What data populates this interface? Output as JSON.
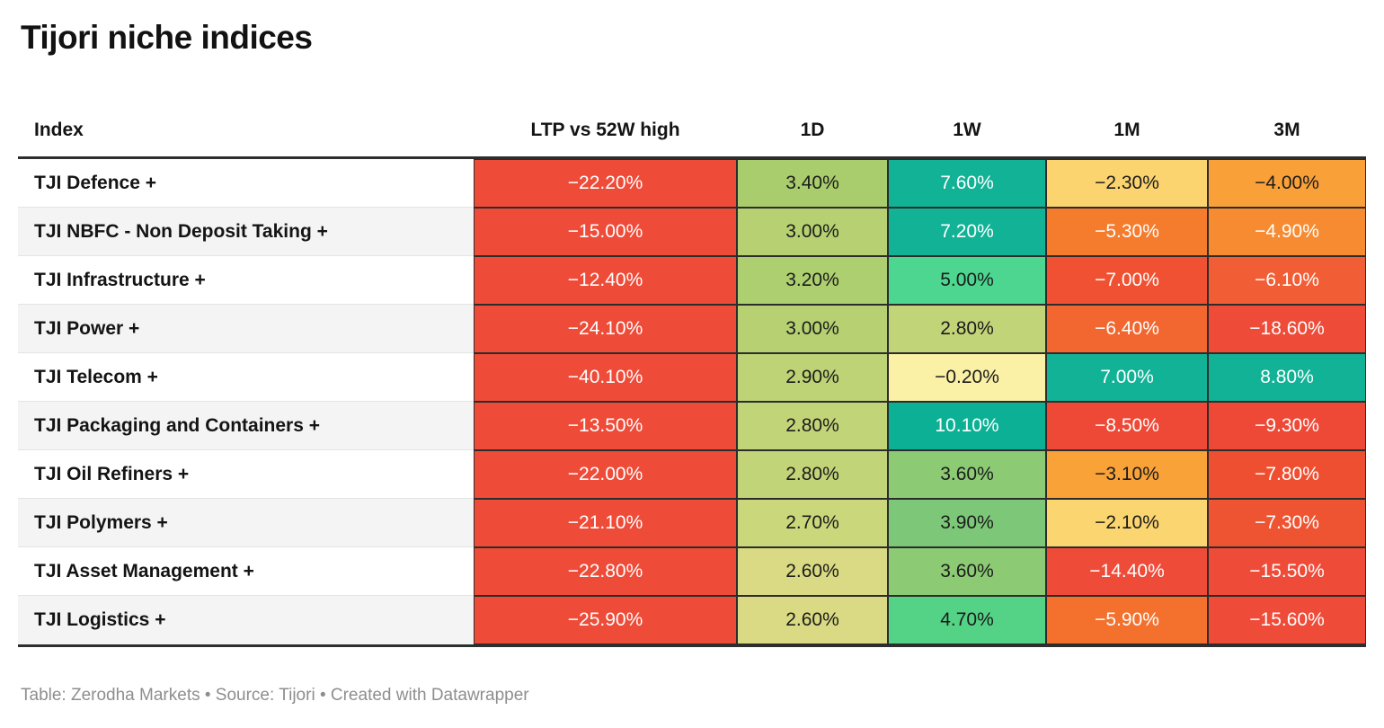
{
  "title": "Tijori niche indices",
  "footer": {
    "text": "Table: Zerodha Markets • Source: Tijori • Created with Datawrapper"
  },
  "colors": {
    "strong_negative": "#ee4b38",
    "strong_positive": "#12b296",
    "neutral": "#faf0a6",
    "header_border": "#2e2e2e",
    "alt_row_bg": "#f4f4f4",
    "footer_text": "#8e8e8e"
  },
  "chart_data": {
    "type": "table",
    "title": "Tijori niche indices",
    "columns": [
      "Index",
      "LTP vs 52W high",
      "1D",
      "1W",
      "1M",
      "3M"
    ],
    "legend_position": "none",
    "grid": "heatmap-cells",
    "rows": [
      {
        "index": "TJI Defence +",
        "values": [
          -22.2,
          3.4,
          7.6,
          -2.3,
          -4.0
        ],
        "cells": [
          {
            "text": "−22.20%",
            "bg": "#ee4b38",
            "fg": "#ffffff"
          },
          {
            "text": "3.40%",
            "bg": "#a9cd6c",
            "fg": "#1b1b1b"
          },
          {
            "text": "7.60%",
            "bg": "#12b296",
            "fg": "#ffffff"
          },
          {
            "text": "−2.30%",
            "bg": "#fbd36f",
            "fg": "#1b1b1b"
          },
          {
            "text": "−4.00%",
            "bg": "#f9a138",
            "fg": "#1b1b1b"
          }
        ]
      },
      {
        "index": "TJI NBFC - Non Deposit Taking +",
        "values": [
          -15.0,
          3.0,
          7.2,
          -5.3,
          -4.9
        ],
        "cells": [
          {
            "text": "−15.00%",
            "bg": "#ee4b38",
            "fg": "#ffffff"
          },
          {
            "text": "3.00%",
            "bg": "#b7d172",
            "fg": "#1b1b1b"
          },
          {
            "text": "7.20%",
            "bg": "#12b296",
            "fg": "#ffffff"
          },
          {
            "text": "−5.30%",
            "bg": "#f57b2d",
            "fg": "#ffffff"
          },
          {
            "text": "−4.90%",
            "bg": "#f68b31",
            "fg": "#ffffff"
          }
        ]
      },
      {
        "index": "TJI Infrastructure +",
        "values": [
          -12.4,
          3.2,
          5.0,
          -7.0,
          -6.1
        ],
        "cells": [
          {
            "text": "−12.40%",
            "bg": "#ee4b38",
            "fg": "#ffffff"
          },
          {
            "text": "3.20%",
            "bg": "#aecf6f",
            "fg": "#1b1b1b"
          },
          {
            "text": "5.00%",
            "bg": "#4cd690",
            "fg": "#1b1b1b"
          },
          {
            "text": "−7.00%",
            "bg": "#ef5132",
            "fg": "#ffffff"
          },
          {
            "text": "−6.10%",
            "bg": "#f15e35",
            "fg": "#ffffff"
          }
        ]
      },
      {
        "index": "TJI Power +",
        "values": [
          -24.1,
          3.0,
          2.8,
          -6.4,
          -18.6
        ],
        "cells": [
          {
            "text": "−24.10%",
            "bg": "#ee4b38",
            "fg": "#ffffff"
          },
          {
            "text": "3.00%",
            "bg": "#b7d172",
            "fg": "#1b1b1b"
          },
          {
            "text": "2.80%",
            "bg": "#c2d478",
            "fg": "#1b1b1b"
          },
          {
            "text": "−6.40%",
            "bg": "#f2672f",
            "fg": "#ffffff"
          },
          {
            "text": "−18.60%",
            "bg": "#ee4b38",
            "fg": "#ffffff"
          }
        ]
      },
      {
        "index": "TJI Telecom +",
        "values": [
          -40.1,
          2.9,
          -0.2,
          7.0,
          8.8
        ],
        "cells": [
          {
            "text": "−40.10%",
            "bg": "#ee4b38",
            "fg": "#ffffff"
          },
          {
            "text": "2.90%",
            "bg": "#bdd375",
            "fg": "#1b1b1b"
          },
          {
            "text": "−0.20%",
            "bg": "#faf0a6",
            "fg": "#1b1b1b"
          },
          {
            "text": "7.00%",
            "bg": "#12b296",
            "fg": "#ffffff"
          },
          {
            "text": "8.80%",
            "bg": "#12b296",
            "fg": "#ffffff"
          }
        ]
      },
      {
        "index": "TJI Packaging and Containers +",
        "values": [
          -13.5,
          2.8,
          10.1,
          -8.5,
          -9.3
        ],
        "cells": [
          {
            "text": "−13.50%",
            "bg": "#ee4b38",
            "fg": "#ffffff"
          },
          {
            "text": "2.80%",
            "bg": "#c2d478",
            "fg": "#1b1b1b"
          },
          {
            "text": "10.10%",
            "bg": "#0cb195",
            "fg": "#ffffff"
          },
          {
            "text": "−8.50%",
            "bg": "#ee4936",
            "fg": "#ffffff"
          },
          {
            "text": "−9.30%",
            "bg": "#ee4936",
            "fg": "#ffffff"
          }
        ]
      },
      {
        "index": "TJI Oil Refiners +",
        "values": [
          -22.0,
          2.8,
          3.6,
          -3.1,
          -7.8
        ],
        "cells": [
          {
            "text": "−22.00%",
            "bg": "#ee4b38",
            "fg": "#ffffff"
          },
          {
            "text": "2.80%",
            "bg": "#c2d478",
            "fg": "#1b1b1b"
          },
          {
            "text": "3.60%",
            "bg": "#8cca74",
            "fg": "#1b1b1b"
          },
          {
            "text": "−3.10%",
            "bg": "#f9a238",
            "fg": "#1b1b1b"
          },
          {
            "text": "−7.80%",
            "bg": "#ef4f31",
            "fg": "#ffffff"
          }
        ]
      },
      {
        "index": "TJI Polymers +",
        "values": [
          -21.1,
          2.7,
          3.9,
          -2.1,
          -7.3
        ],
        "cells": [
          {
            "text": "−21.10%",
            "bg": "#ee4b38",
            "fg": "#ffffff"
          },
          {
            "text": "2.70%",
            "bg": "#cad77b",
            "fg": "#1b1b1b"
          },
          {
            "text": "3.90%",
            "bg": "#7dc878",
            "fg": "#1b1b1b"
          },
          {
            "text": "−2.10%",
            "bg": "#fbd56f",
            "fg": "#1b1b1b"
          },
          {
            "text": "−7.30%",
            "bg": "#ef5432",
            "fg": "#ffffff"
          }
        ]
      },
      {
        "index": "TJI Asset Management +",
        "values": [
          -22.8,
          2.6,
          3.6,
          -14.4,
          -15.5
        ],
        "cells": [
          {
            "text": "−22.80%",
            "bg": "#ee4b38",
            "fg": "#ffffff"
          },
          {
            "text": "2.60%",
            "bg": "#d9da83",
            "fg": "#1b1b1b"
          },
          {
            "text": "3.60%",
            "bg": "#8cca74",
            "fg": "#1b1b1b"
          },
          {
            "text": "−14.40%",
            "bg": "#ee4b38",
            "fg": "#ffffff"
          },
          {
            "text": "−15.50%",
            "bg": "#ee4b38",
            "fg": "#ffffff"
          }
        ]
      },
      {
        "index": "TJI Logistics +",
        "values": [
          -25.9,
          2.6,
          4.7,
          -5.9,
          -15.6
        ],
        "cells": [
          {
            "text": "−25.90%",
            "bg": "#ee4b38",
            "fg": "#ffffff"
          },
          {
            "text": "2.60%",
            "bg": "#d9da83",
            "fg": "#1b1b1b"
          },
          {
            "text": "4.70%",
            "bg": "#54d286",
            "fg": "#1b1b1b"
          },
          {
            "text": "−5.90%",
            "bg": "#f4712d",
            "fg": "#ffffff"
          },
          {
            "text": "−15.60%",
            "bg": "#ee4b38",
            "fg": "#ffffff"
          }
        ]
      }
    ]
  }
}
